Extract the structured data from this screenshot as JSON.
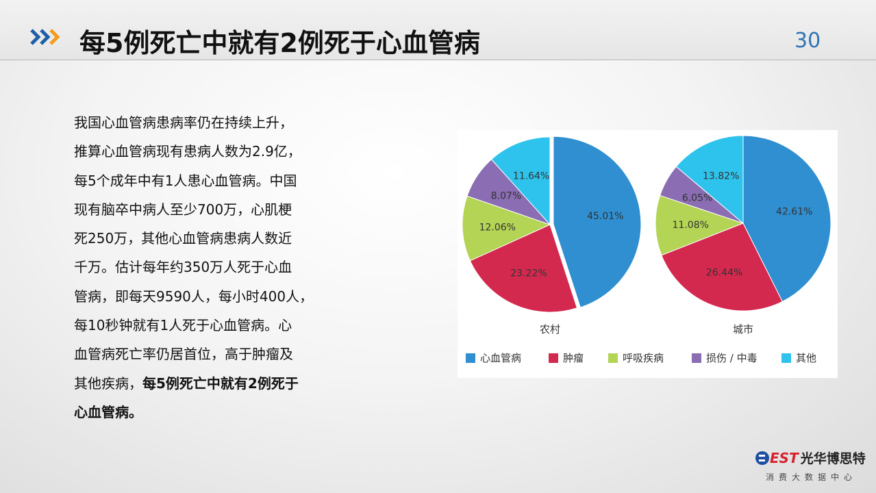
{
  "header": {
    "title": "每5例死亡中就有2例死于心血管病",
    "page_number": "30",
    "accent": "#2e74b5"
  },
  "body": {
    "lines": [
      "我国心血管病患病率仍在持续上升，",
      "推算心血管病现有患病人数为2.9亿，",
      "每5个成年中有1人患心血管病。中国",
      "现有脑卒中病人至少700万，心肌梗",
      "死250万，其他心血管病患病人数近",
      "千万。估计每年约350万人死于心血",
      "管病，即每天9590人，每小时400人，",
      "每10秒钟就有1人死于心血管病。心",
      "血管病死亡率仍居首位，高于肿瘤及"
    ],
    "last_normal": "其他疾病，",
    "bold_1": "每5例死亡中就有2例死于",
    "bold_2": "心血管病。"
  },
  "chart_data": [
    {
      "type": "pie",
      "name": "农村",
      "categories": [
        "心血管病",
        "肿瘤",
        "呼吸疾病",
        "损伤 / 中毒",
        "其他"
      ],
      "values": [
        45.01,
        23.22,
        12.06,
        8.07,
        11.64
      ],
      "labels": [
        "45.01%",
        "23.22%",
        "12.06%",
        "8.07%",
        "11.64%"
      ],
      "colors": [
        "#2f8fd0",
        "#d4294f",
        "#b4d455",
        "#8a6db2",
        "#2ec3ec"
      ],
      "legend": "bottom"
    },
    {
      "type": "pie",
      "name": "城市",
      "categories": [
        "心血管病",
        "肿瘤",
        "呼吸疾病",
        "损伤 / 中毒",
        "其他"
      ],
      "values": [
        42.61,
        26.44,
        11.08,
        6.05,
        13.82
      ],
      "labels": [
        "42.61%",
        "26.44%",
        "11.08%",
        "6.05%",
        "13.82%"
      ],
      "colors": [
        "#2f8fd0",
        "#d4294f",
        "#b4d455",
        "#8a6db2",
        "#2ec3ec"
      ],
      "legend": "bottom"
    }
  ],
  "legend": [
    {
      "label": "心血管病",
      "color": "#2f8fd0"
    },
    {
      "label": "肿瘤",
      "color": "#d4294f"
    },
    {
      "label": "呼吸疾病",
      "color": "#b4d455"
    },
    {
      "label": "损伤 / 中毒",
      "color": "#8a6db2"
    },
    {
      "label": "其他",
      "color": "#2ec3ec"
    }
  ],
  "logo": {
    "best": "BEST",
    "name": "光华博思特",
    "sub": "消费大数据中心"
  }
}
